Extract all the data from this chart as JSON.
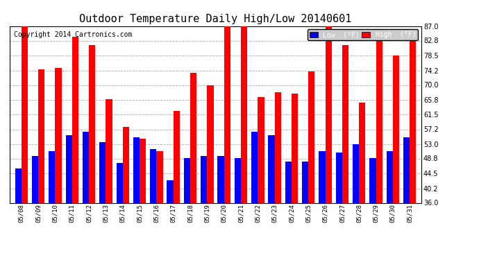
{
  "title": "Outdoor Temperature Daily High/Low 20140601",
  "copyright": "Copyright 2014 Cartronics.com",
  "dates": [
    "05/08",
    "05/09",
    "05/10",
    "05/11",
    "05/12",
    "05/13",
    "05/14",
    "05/15",
    "05/16",
    "05/17",
    "05/18",
    "05/19",
    "05/20",
    "05/21",
    "05/22",
    "05/23",
    "05/24",
    "05/25",
    "05/26",
    "05/27",
    "05/28",
    "05/29",
    "05/30",
    "05/31"
  ],
  "highs": [
    87.0,
    74.5,
    75.0,
    84.0,
    81.5,
    66.0,
    58.0,
    54.5,
    51.0,
    62.5,
    73.5,
    70.0,
    87.0,
    87.0,
    66.5,
    68.0,
    67.5,
    74.0,
    87.0,
    81.5,
    65.0,
    83.5,
    78.5,
    84.0
  ],
  "lows": [
    46.0,
    49.5,
    51.0,
    55.5,
    56.5,
    53.5,
    47.5,
    55.0,
    51.5,
    42.5,
    49.0,
    49.5,
    49.5,
    49.0,
    56.5,
    55.5,
    48.0,
    48.0,
    51.0,
    50.5,
    53.0,
    49.0,
    51.0,
    55.0
  ],
  "high_color": "#ff0000",
  "low_color": "#0000ff",
  "bg_color": "#ffffff",
  "plot_bg_color": "#ffffff",
  "grid_color": "#aaaaaa",
  "ymin": 36.0,
  "ymax": 87.0,
  "yticks": [
    36.0,
    40.2,
    44.5,
    48.8,
    53.0,
    57.2,
    61.5,
    65.8,
    70.0,
    74.2,
    78.5,
    82.8,
    87.0
  ],
  "title_fontsize": 11,
  "copyright_fontsize": 7,
  "bar_width": 0.38
}
